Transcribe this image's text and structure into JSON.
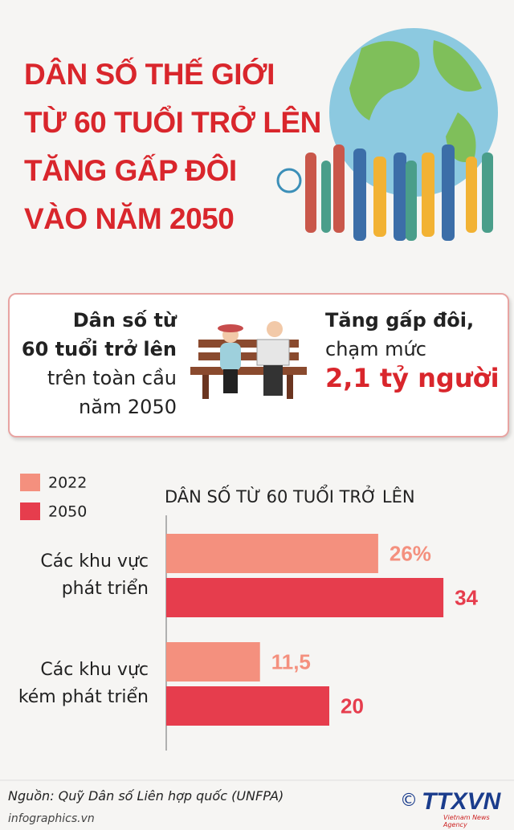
{
  "header": {
    "title_lines": [
      "DÂN SỐ THẾ GIỚI",
      "TỪ 60 TUỔI TRỞ LÊN",
      "TĂNG GẤP ĐÔI",
      "VÀO NĂM 2050"
    ]
  },
  "info_box": {
    "left_lines": [
      "Dân số từ",
      "60 tuổi trở lên",
      "trên toàn cầu",
      "năm 2050"
    ],
    "right_lines": [
      "Tăng gấp đôi,",
      "chạm mức",
      "2,1 tỷ người"
    ]
  },
  "chart_data": {
    "type": "bar",
    "orientation": "horizontal",
    "title": "DÂN SỐ TỪ 60 TUỔI TRỞ LÊN",
    "categories": [
      "Các khu vực phát triển",
      "Các khu vực kém phát triển"
    ],
    "series": [
      {
        "name": "2022",
        "color": "#f4907e",
        "values": [
          26,
          11.5
        ],
        "value_labels": [
          "26%",
          "11,5"
        ]
      },
      {
        "name": "2050",
        "color": "#e63d4d",
        "values": [
          34,
          20
        ],
        "value_labels": [
          "34",
          "20"
        ]
      }
    ],
    "xlim": [
      0,
      40
    ],
    "legend": "top-left"
  },
  "footer": {
    "source": "Nguồn: Quỹ Dân số Liên hợp quốc (UNFPA)",
    "website": "infographics.vn",
    "copyright": "©",
    "logo": "TTXVN",
    "logo_sub": "Vietnam News Agency"
  }
}
